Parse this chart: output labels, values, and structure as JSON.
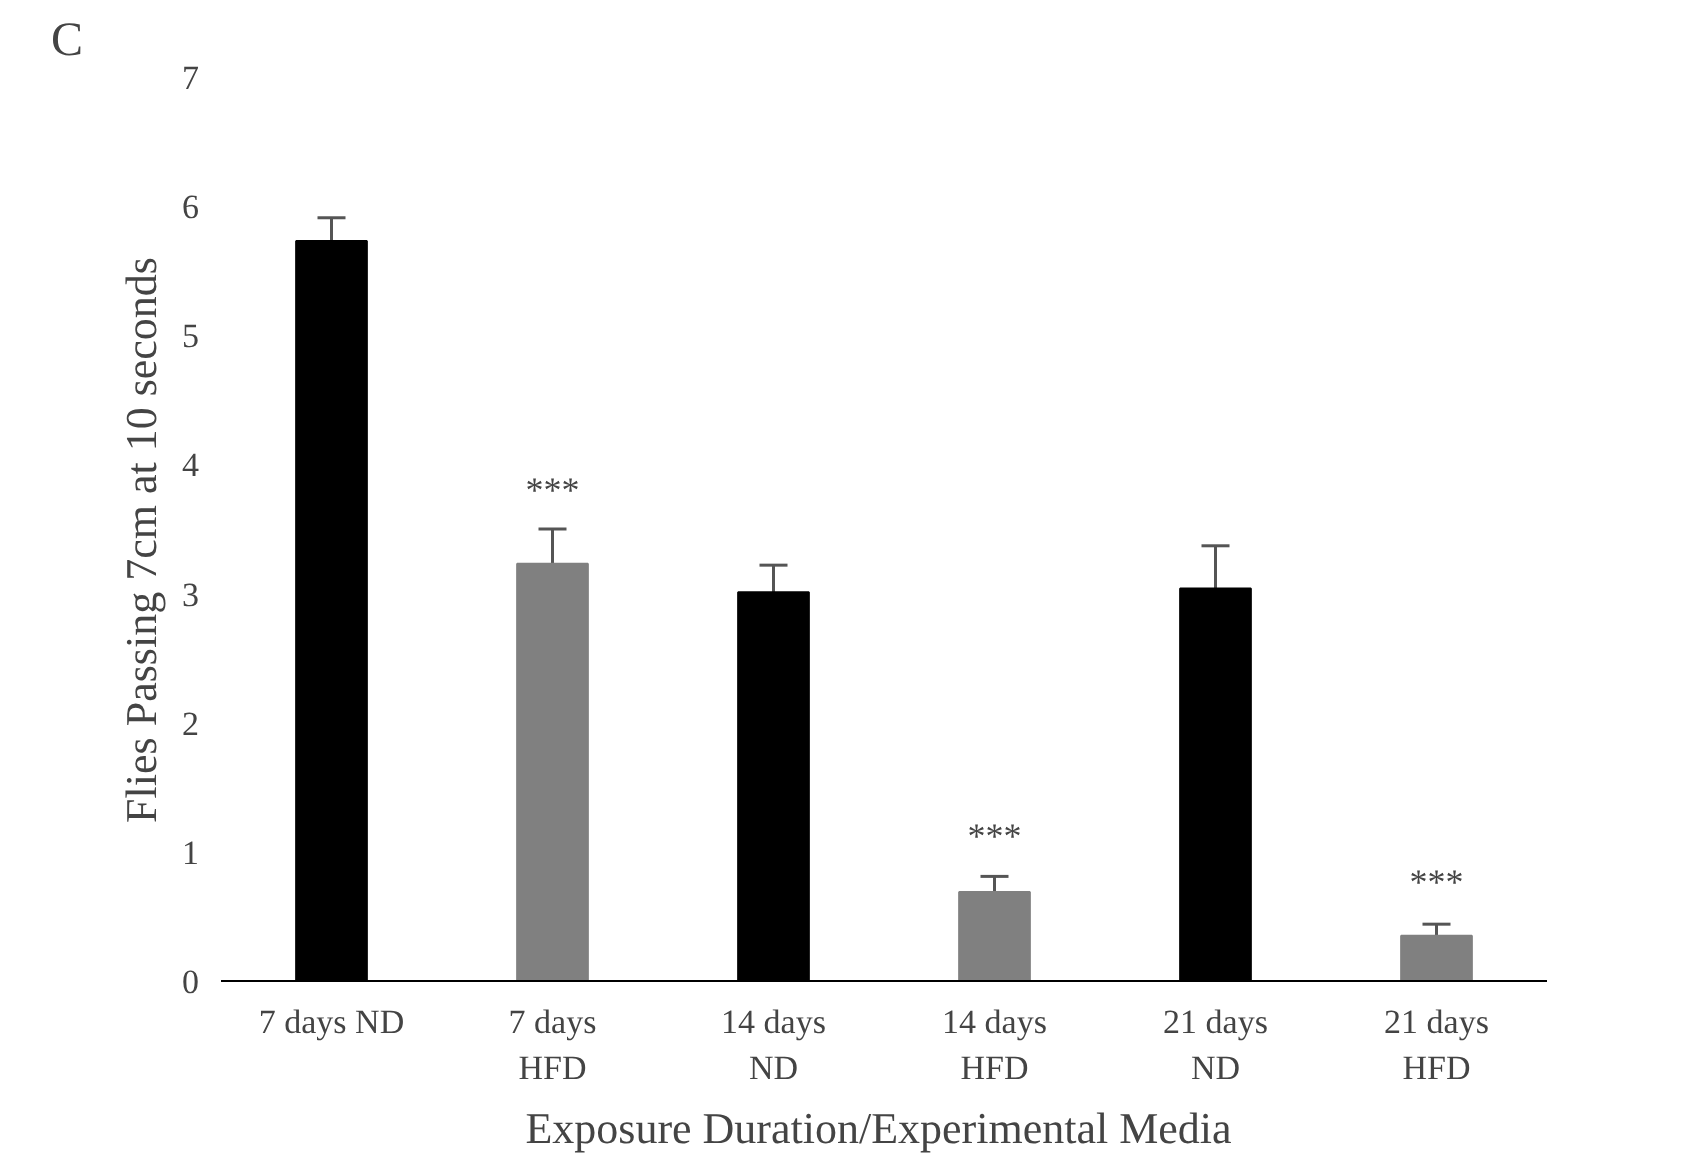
{
  "chart_data": {
    "type": "bar",
    "xlabel": "Exposure Duration/Experimental  Media",
    "ylabel": "Flies  Passing  7cm at 10 seconds",
    "categories": [
      "7 days ND",
      "7 days\nHFD",
      "14 days\nND",
      "14 days\nHFD",
      "21 days\nND",
      "21 days\nHFD"
    ],
    "values": [
      5.73,
      3.23,
      3.01,
      0.69,
      3.04,
      0.35
    ],
    "errors": [
      0.18,
      0.27,
      0.21,
      0.12,
      0.33,
      0.09
    ],
    "colors": [
      "#000000",
      "#808080",
      "#000000",
      "#808080",
      "#000000",
      "#808080"
    ],
    "ylim": [
      0,
      7
    ],
    "yticks": [
      0,
      1,
      2,
      3,
      4,
      5,
      6,
      7
    ],
    "grid": false,
    "annotations": [
      "C",
      {
        "text": "***",
        "x": "7 days\nHFD",
        "y": 3.23
      },
      {
        "text": "***",
        "x": "14 days\nHFD",
        "y": 0.69
      },
      {
        "text": "***",
        "x": "21 days\nHFD",
        "y": 0.35
      }
    ]
  }
}
